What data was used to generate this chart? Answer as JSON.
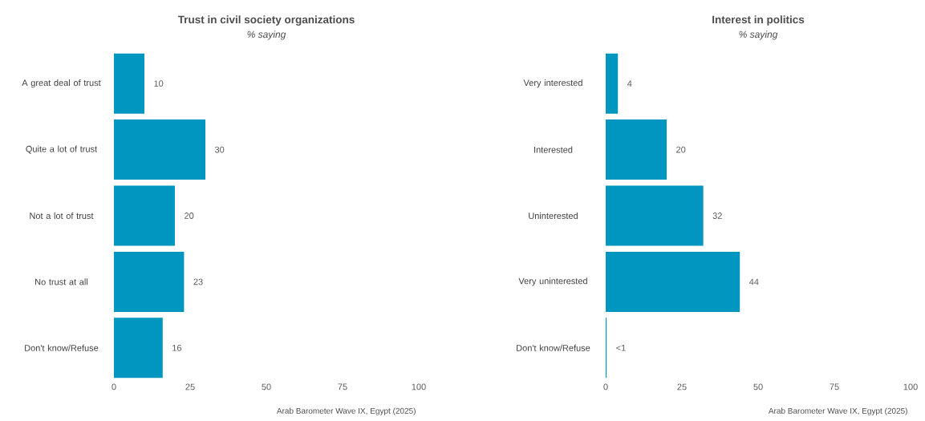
{
  "chart_data": [
    {
      "type": "bar",
      "orientation": "horizontal",
      "title": "Trust in civil society organizations",
      "subtitle": "% saying",
      "categories": [
        "A great deal of trust",
        "Quite a lot of trust",
        "Not a lot of trust",
        "No trust at all",
        "Don't know/Refuse"
      ],
      "values": [
        10,
        30,
        20,
        23,
        16
      ],
      "color": "#0096bf",
      "xlim": [
        0,
        100
      ],
      "xticks": [
        0,
        25,
        50,
        75,
        100
      ],
      "data_labels": true,
      "annotations": [
        "Arab Barometer Wave IX, Egypt (2025)"
      ]
    },
    {
      "type": "bar",
      "orientation": "horizontal",
      "title": "Interest in politics",
      "subtitle": "% saying",
      "categories": [
        "Very interested",
        "Interested",
        "Uninterested",
        "Very uninterested",
        "Don't know/Refuse"
      ],
      "values": [
        4,
        20,
        32,
        44,
        0.3
      ],
      "value_labels": [
        "4",
        "20",
        "32",
        "44",
        "<1"
      ],
      "color": "#0096bf",
      "xlim": [
        0,
        100
      ],
      "xticks": [
        0,
        25,
        50,
        75,
        100
      ],
      "annotations": [
        "Arab Barometer Wave IX, Egypt (2025)"
      ]
    }
  ]
}
